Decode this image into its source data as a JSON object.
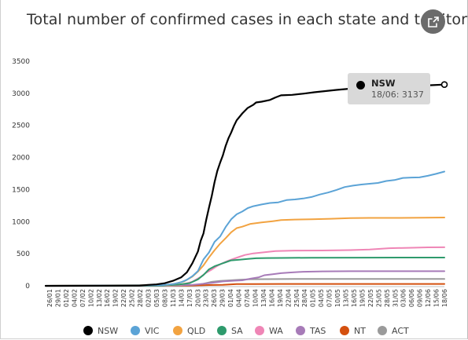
{
  "header": {
    "title": "Total number of confirmed cases in each state and territory",
    "share_icon": "share-icon"
  },
  "tooltip": {
    "series": "NSW",
    "text": "18/06: 3137"
  },
  "colors": {
    "NSW": "#000000",
    "VIC": "#5ba3d6",
    "QLD": "#f2a341",
    "SA": "#2e9a6c",
    "WA": "#ef86b6",
    "TAS": "#a77bb8",
    "NT": "#d4500f",
    "ACT": "#9a9a9a"
  },
  "chart_data": {
    "type": "line",
    "title": "Total number of confirmed cases in each state and territory",
    "xlabel": "",
    "ylabel": "",
    "ylim": [
      0,
      3500
    ],
    "yticks": [
      0,
      500,
      1000,
      1500,
      2000,
      2500,
      3000,
      3500
    ],
    "grid": false,
    "legend_position": "bottom",
    "x_tick_labels": [
      "26/01",
      "29/01",
      "01/02",
      "04/02",
      "07/02",
      "10/02",
      "13/02",
      "16/02",
      "19/02",
      "22/02",
      "25/02",
      "28/02",
      "02/03",
      "05/03",
      "08/03",
      "11/03",
      "14/03",
      "17/03",
      "20/03",
      "23/03",
      "26/03",
      "29/03",
      "01/04",
      "04/04",
      "07/04",
      "10/04",
      "13/04",
      "16/04",
      "19/04",
      "22/04",
      "25/04",
      "28/04",
      "01/05",
      "04/05",
      "07/05",
      "10/05",
      "13/05",
      "16/05",
      "19/05",
      "22/05",
      "25/05",
      "28/05",
      "31/05",
      "03/06",
      "06/06",
      "09/06",
      "12/06",
      "15/06",
      "18/06"
    ],
    "x_start": "2020-01-26",
    "x_end": "2020-06-18",
    "series": [
      {
        "name": "NSW",
        "points": [
          [
            "2020-01-26",
            0
          ],
          [
            "2020-02-29",
            4
          ],
          [
            "2020-03-03",
            15
          ],
          [
            "2020-03-06",
            22
          ],
          [
            "2020-03-09",
            40
          ],
          [
            "2020-03-12",
            78
          ],
          [
            "2020-03-15",
            134
          ],
          [
            "2020-03-17",
            210
          ],
          [
            "2020-03-19",
            353
          ],
          [
            "2020-03-21",
            535
          ],
          [
            "2020-03-22",
            704
          ],
          [
            "2020-03-23",
            818
          ],
          [
            "2020-03-24",
            1029
          ],
          [
            "2020-03-25",
            1219
          ],
          [
            "2020-03-26",
            1405
          ],
          [
            "2020-03-27",
            1617
          ],
          [
            "2020-03-28",
            1791
          ],
          [
            "2020-03-29",
            1918
          ],
          [
            "2020-03-30",
            2032
          ],
          [
            "2020-03-31",
            2182
          ],
          [
            "2020-04-01",
            2298
          ],
          [
            "2020-04-02",
            2389
          ],
          [
            "2020-04-03",
            2493
          ],
          [
            "2020-04-04",
            2580
          ],
          [
            "2020-04-06",
            2686
          ],
          [
            "2020-04-08",
            2773
          ],
          [
            "2020-04-10",
            2822
          ],
          [
            "2020-04-11",
            2857
          ],
          [
            "2020-04-13",
            2870
          ],
          [
            "2020-04-16",
            2897
          ],
          [
            "2020-04-18",
            2936
          ],
          [
            "2020-04-20",
            2969
          ],
          [
            "2020-04-24",
            2976
          ],
          [
            "2020-04-28",
            2994
          ],
          [
            "2020-05-02",
            3016
          ],
          [
            "2020-05-06",
            3035
          ],
          [
            "2020-05-10",
            3053
          ],
          [
            "2020-05-16",
            3076
          ],
          [
            "2020-05-22",
            3087
          ],
          [
            "2020-05-28",
            3098
          ],
          [
            "2020-06-03",
            3110
          ],
          [
            "2020-06-09",
            3119
          ],
          [
            "2020-06-14",
            3128
          ],
          [
            "2020-06-18",
            3137
          ]
        ]
      },
      {
        "name": "VIC",
        "points": [
          [
            "2020-01-26",
            0
          ],
          [
            "2020-03-01",
            9
          ],
          [
            "2020-03-08",
            11
          ],
          [
            "2020-03-12",
            27
          ],
          [
            "2020-03-15",
            57
          ],
          [
            "2020-03-17",
            94
          ],
          [
            "2020-03-19",
            150
          ],
          [
            "2020-03-21",
            229
          ],
          [
            "2020-03-23",
            411
          ],
          [
            "2020-03-25",
            520
          ],
          [
            "2020-03-27",
            685
          ],
          [
            "2020-03-29",
            769
          ],
          [
            "2020-03-31",
            917
          ],
          [
            "2020-04-02",
            1036
          ],
          [
            "2020-04-04",
            1115
          ],
          [
            "2020-04-06",
            1158
          ],
          [
            "2020-04-08",
            1212
          ],
          [
            "2020-04-10",
            1241
          ],
          [
            "2020-04-13",
            1268
          ],
          [
            "2020-04-16",
            1291
          ],
          [
            "2020-04-19",
            1301
          ],
          [
            "2020-04-22",
            1336
          ],
          [
            "2020-04-25",
            1346
          ],
          [
            "2020-04-28",
            1361
          ],
          [
            "2020-05-01",
            1384
          ],
          [
            "2020-05-04",
            1423
          ],
          [
            "2020-05-07",
            1454
          ],
          [
            "2020-05-10",
            1494
          ],
          [
            "2020-05-13",
            1540
          ],
          [
            "2020-05-16",
            1561
          ],
          [
            "2020-05-19",
            1579
          ],
          [
            "2020-05-22",
            1591
          ],
          [
            "2020-05-25",
            1603
          ],
          [
            "2020-05-28",
            1634
          ],
          [
            "2020-05-31",
            1649
          ],
          [
            "2020-06-03",
            1681
          ],
          [
            "2020-06-06",
            1687
          ],
          [
            "2020-06-09",
            1690
          ],
          [
            "2020-06-12",
            1715
          ],
          [
            "2020-06-15",
            1745
          ],
          [
            "2020-06-18",
            1780
          ]
        ]
      },
      {
        "name": "QLD",
        "points": [
          [
            "2020-01-26",
            0
          ],
          [
            "2020-03-05",
            13
          ],
          [
            "2020-03-10",
            15
          ],
          [
            "2020-03-13",
            35
          ],
          [
            "2020-03-16",
            68
          ],
          [
            "2020-03-19",
            144
          ],
          [
            "2020-03-21",
            221
          ],
          [
            "2020-03-23",
            319
          ],
          [
            "2020-03-25",
            443
          ],
          [
            "2020-03-27",
            555
          ],
          [
            "2020-03-29",
            656
          ],
          [
            "2020-03-31",
            743
          ],
          [
            "2020-04-02",
            835
          ],
          [
            "2020-04-04",
            900
          ],
          [
            "2020-04-06",
            921
          ],
          [
            "2020-04-09",
            965
          ],
          [
            "2020-04-13",
            987
          ],
          [
            "2020-04-17",
            1007
          ],
          [
            "2020-04-20",
            1024
          ],
          [
            "2020-04-25",
            1033
          ],
          [
            "2020-05-01",
            1038
          ],
          [
            "2020-05-08",
            1045
          ],
          [
            "2020-05-15",
            1055
          ],
          [
            "2020-05-22",
            1058
          ],
          [
            "2020-06-01",
            1059
          ],
          [
            "2020-06-10",
            1062
          ],
          [
            "2020-06-18",
            1065
          ]
        ]
      },
      {
        "name": "SA",
        "points": [
          [
            "2020-01-26",
            0
          ],
          [
            "2020-03-08",
            3
          ],
          [
            "2020-03-14",
            20
          ],
          [
            "2020-03-18",
            42
          ],
          [
            "2020-03-21",
            100
          ],
          [
            "2020-03-23",
            169
          ],
          [
            "2020-03-25",
            257
          ],
          [
            "2020-03-27",
            305
          ],
          [
            "2020-03-29",
            337
          ],
          [
            "2020-03-31",
            367
          ],
          [
            "2020-04-02",
            396
          ],
          [
            "2020-04-05",
            407
          ],
          [
            "2020-04-08",
            420
          ],
          [
            "2020-04-11",
            429
          ],
          [
            "2020-04-15",
            433
          ],
          [
            "2020-04-20",
            435
          ],
          [
            "2020-05-01",
            438
          ],
          [
            "2020-05-20",
            439
          ],
          [
            "2020-06-18",
            440
          ]
        ]
      },
      {
        "name": "WA",
        "points": [
          [
            "2020-01-26",
            0
          ],
          [
            "2020-03-04",
            3
          ],
          [
            "2020-03-10",
            4
          ],
          [
            "2020-03-15",
            18
          ],
          [
            "2020-03-19",
            64
          ],
          [
            "2020-03-22",
            140
          ],
          [
            "2020-03-24",
            205
          ],
          [
            "2020-03-26",
            255
          ],
          [
            "2020-03-28",
            311
          ],
          [
            "2020-03-30",
            355
          ],
          [
            "2020-04-01",
            393
          ],
          [
            "2020-04-03",
            422
          ],
          [
            "2020-04-05",
            453
          ],
          [
            "2020-04-07",
            481
          ],
          [
            "2020-04-10",
            505
          ],
          [
            "2020-04-14",
            523
          ],
          [
            "2020-04-18",
            541
          ],
          [
            "2020-04-25",
            549
          ],
          [
            "2020-05-05",
            551
          ],
          [
            "2020-05-15",
            557
          ],
          [
            "2020-05-22",
            566
          ],
          [
            "2020-05-29",
            586
          ],
          [
            "2020-06-05",
            592
          ],
          [
            "2020-06-12",
            600
          ],
          [
            "2020-06-18",
            601
          ]
        ]
      },
      {
        "name": "TAS",
        "points": [
          [
            "2020-01-26",
            0
          ],
          [
            "2020-03-02",
            1
          ],
          [
            "2020-03-14",
            7
          ],
          [
            "2020-03-19",
            16
          ],
          [
            "2020-03-22",
            28
          ],
          [
            "2020-03-26",
            47
          ],
          [
            "2020-03-30",
            69
          ],
          [
            "2020-04-03",
            80
          ],
          [
            "2020-04-06",
            86
          ],
          [
            "2020-04-09",
            111
          ],
          [
            "2020-04-12",
            133
          ],
          [
            "2020-04-14",
            165
          ],
          [
            "2020-04-17",
            180
          ],
          [
            "2020-04-20",
            197
          ],
          [
            "2020-04-23",
            207
          ],
          [
            "2020-04-28",
            219
          ],
          [
            "2020-05-05",
            225
          ],
          [
            "2020-05-15",
            228
          ],
          [
            "2020-06-18",
            228
          ]
        ]
      },
      {
        "name": "NT",
        "points": [
          [
            "2020-01-26",
            0
          ],
          [
            "2020-03-04",
            1
          ],
          [
            "2020-03-19",
            5
          ],
          [
            "2020-03-25",
            12
          ],
          [
            "2020-03-30",
            15
          ],
          [
            "2020-04-04",
            27
          ],
          [
            "2020-04-10",
            28
          ],
          [
            "2020-04-20",
            29
          ],
          [
            "2020-06-18",
            29
          ]
        ]
      },
      {
        "name": "ACT",
        "points": [
          [
            "2020-01-26",
            0
          ],
          [
            "2020-03-12",
            1
          ],
          [
            "2020-03-17",
            3
          ],
          [
            "2020-03-20",
            9
          ],
          [
            "2020-03-23",
            32
          ],
          [
            "2020-03-26",
            62
          ],
          [
            "2020-03-29",
            77
          ],
          [
            "2020-04-01",
            84
          ],
          [
            "2020-04-05",
            96
          ],
          [
            "2020-04-09",
            103
          ],
          [
            "2020-04-15",
            104
          ],
          [
            "2020-04-25",
            106
          ],
          [
            "2020-05-10",
            107
          ],
          [
            "2020-06-18",
            108
          ]
        ]
      }
    ]
  }
}
